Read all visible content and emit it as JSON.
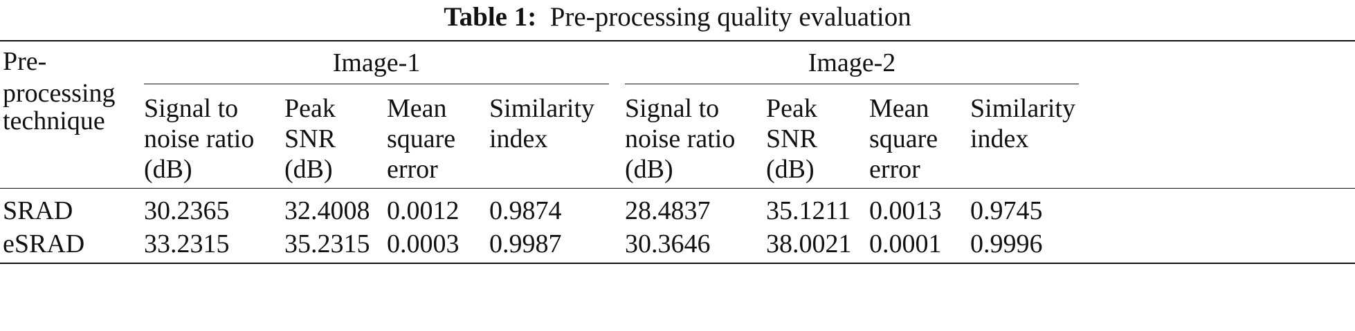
{
  "caption": {
    "label": "Table 1:",
    "text": "Pre-processing quality evaluation"
  },
  "header": {
    "technique": [
      "Pre-",
      "processing",
      "technique"
    ],
    "groups": [
      "Image-1",
      "Image-2"
    ],
    "columns": [
      [
        "Signal to",
        "noise ratio",
        "(dB)"
      ],
      [
        "Peak",
        "SNR",
        "(dB)"
      ],
      [
        "Mean",
        "square",
        "error"
      ],
      [
        "Similarity",
        "index"
      ]
    ]
  },
  "rows": [
    {
      "technique": "SRAD",
      "values": [
        "30.2365",
        "32.4008",
        "0.0012",
        "0.9874",
        "28.4837",
        "35.1211",
        "0.0013",
        "0.9745"
      ]
    },
    {
      "technique": "eSRAD",
      "values": [
        "33.2315",
        "35.2315",
        "0.0003",
        "0.9987",
        "30.3646",
        "38.0021",
        "0.0001",
        "0.9996"
      ]
    }
  ]
}
